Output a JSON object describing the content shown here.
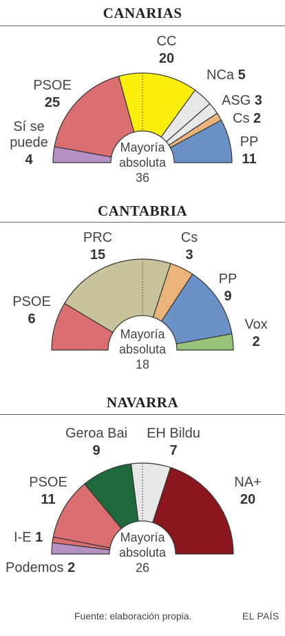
{
  "chart_data": [
    {
      "type": "pie",
      "title": "CANARIAS",
      "majority_text": [
        "Mayoría",
        "absoluta"
      ],
      "majority": 36,
      "total": 70,
      "parties": [
        {
          "name": "Sí se puede",
          "label_lines": [
            "Sí se",
            "puede"
          ],
          "seats": 4,
          "color": "#b692c4"
        },
        {
          "name": "PSOE",
          "label_lines": [
            "PSOE"
          ],
          "seats": 25,
          "color": "#db6e6e"
        },
        {
          "name": "CC",
          "label_lines": [
            "CC"
          ],
          "seats": 20,
          "color": "#f9ef0a"
        },
        {
          "name": "NCa",
          "label_lines": [
            "NCa"
          ],
          "seats": 5,
          "color": "#e8e8e8"
        },
        {
          "name": "ASG",
          "label_lines": [
            "ASG"
          ],
          "seats": 3,
          "color": "#e8e8e8"
        },
        {
          "name": "Cs",
          "label_lines": [
            "Cs"
          ],
          "seats": 2,
          "color": "#eab37a"
        },
        {
          "name": "PP",
          "label_lines": [
            "PP"
          ],
          "seats": 11,
          "color": "#6b92c7"
        }
      ]
    },
    {
      "type": "pie",
      "title": "CANTABRIA",
      "majority_text": [
        "Mayoría",
        "absoluta"
      ],
      "majority": 18,
      "total": 35,
      "parties": [
        {
          "name": "PSOE",
          "label_lines": [
            "PSOE"
          ],
          "seats": 6,
          "color": "#db6e6e"
        },
        {
          "name": "PRC",
          "label_lines": [
            "PRC"
          ],
          "seats": 15,
          "color": "#c8c39a"
        },
        {
          "name": "Cs",
          "label_lines": [
            "Cs"
          ],
          "seats": 3,
          "color": "#eab37a"
        },
        {
          "name": "PP",
          "label_lines": [
            "PP"
          ],
          "seats": 9,
          "color": "#6b92c7"
        },
        {
          "name": "Vox",
          "label_lines": [
            "Vox"
          ],
          "seats": 2,
          "color": "#99c27a"
        }
      ]
    },
    {
      "type": "pie",
      "title": "NAVARRA",
      "majority_text": [
        "Mayoría",
        "absoluta"
      ],
      "majority": 26,
      "total": 50,
      "parties": [
        {
          "name": "Podemos",
          "label_lines": [
            "Podemos"
          ],
          "seats": 2,
          "color": "#b692c4"
        },
        {
          "name": "I-E",
          "label_lines": [
            "I-E"
          ],
          "seats": 1,
          "color": "#db6e6e"
        },
        {
          "name": "PSOE",
          "label_lines": [
            "PSOE"
          ],
          "seats": 11,
          "color": "#db6e6e"
        },
        {
          "name": "Geroa Bai",
          "label_lines": [
            "Geroa Bai"
          ],
          "seats": 9,
          "color": "#1f6a3c"
        },
        {
          "name": "EH Bildu",
          "label_lines": [
            "EH Bildu"
          ],
          "seats": 7,
          "color": "#e8e8e8"
        },
        {
          "name": "NA+",
          "label_lines": [
            "NA+"
          ],
          "seats": 20,
          "color": "#8a171d"
        }
      ]
    }
  ],
  "footer": {
    "source": "Fuente: elaboración propia.",
    "brand": "EL PAÍS"
  }
}
